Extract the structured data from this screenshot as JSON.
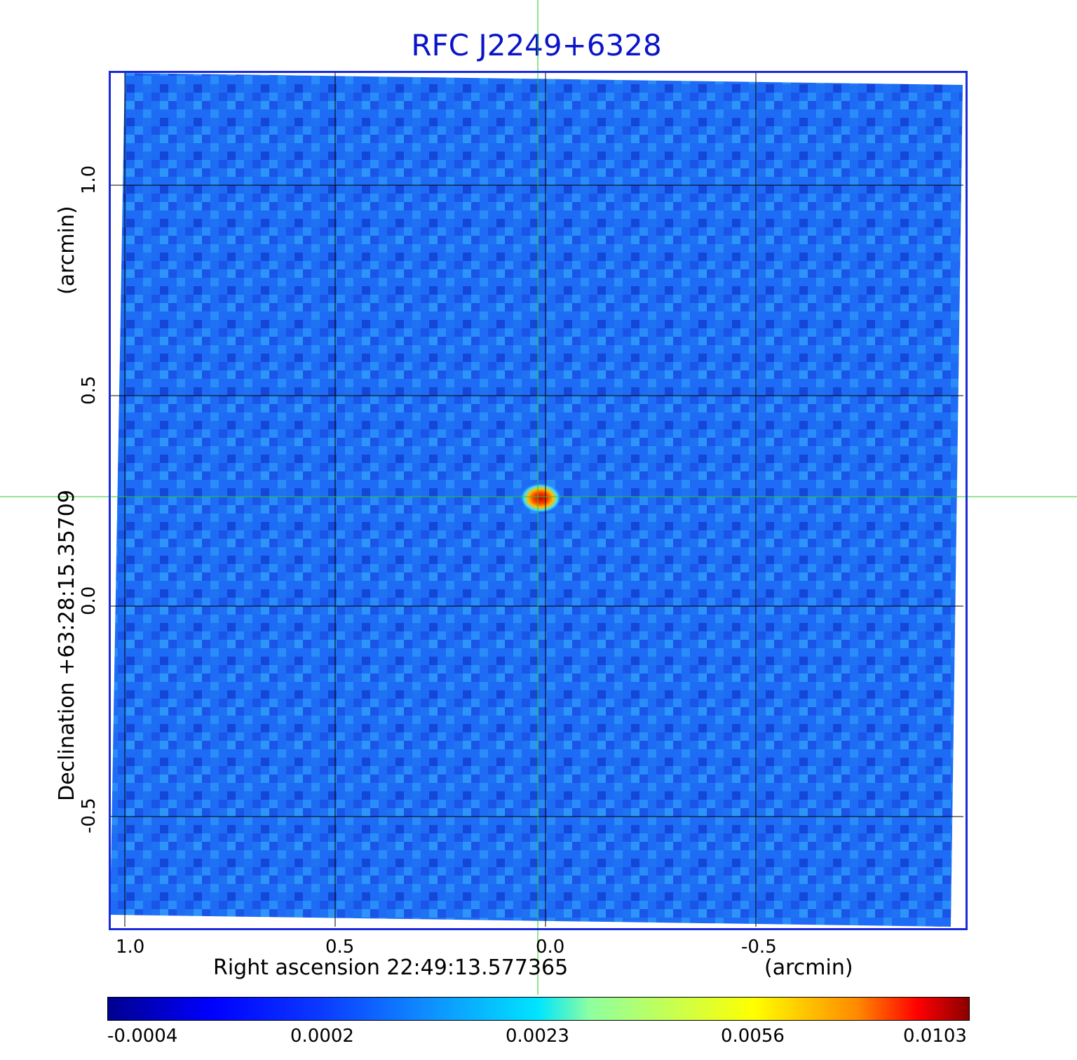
{
  "title": "RFC J2249+6328",
  "axes": {
    "x": {
      "label": "Right ascension  22:49:13.577365",
      "unit": "(arcmin)",
      "ticks": [
        "1.0",
        "0.5",
        "0.0",
        "-0.5"
      ]
    },
    "y": {
      "label": "Declination  +63:28:15.35709",
      "unit": "(arcmin)",
      "ticks": [
        "1.0",
        "0.5",
        "0.0",
        "-0.5"
      ]
    }
  },
  "colorbar": {
    "ticks": [
      "-0.0004",
      "0.0002",
      "0.0023",
      "0.0056",
      "0.0103"
    ],
    "colors": [
      "#00008f",
      "#0000ff",
      "#0f8dff",
      "#00e5ff",
      "#ffff00",
      "#ff8a00",
      "#ff0000",
      "#8b0000"
    ]
  },
  "colors": {
    "title": "#0a14c8",
    "frame": "#1a2bd8",
    "crosshair": "#22cc22",
    "grid": "#000000",
    "background_noise": "#1e6cf5"
  }
}
